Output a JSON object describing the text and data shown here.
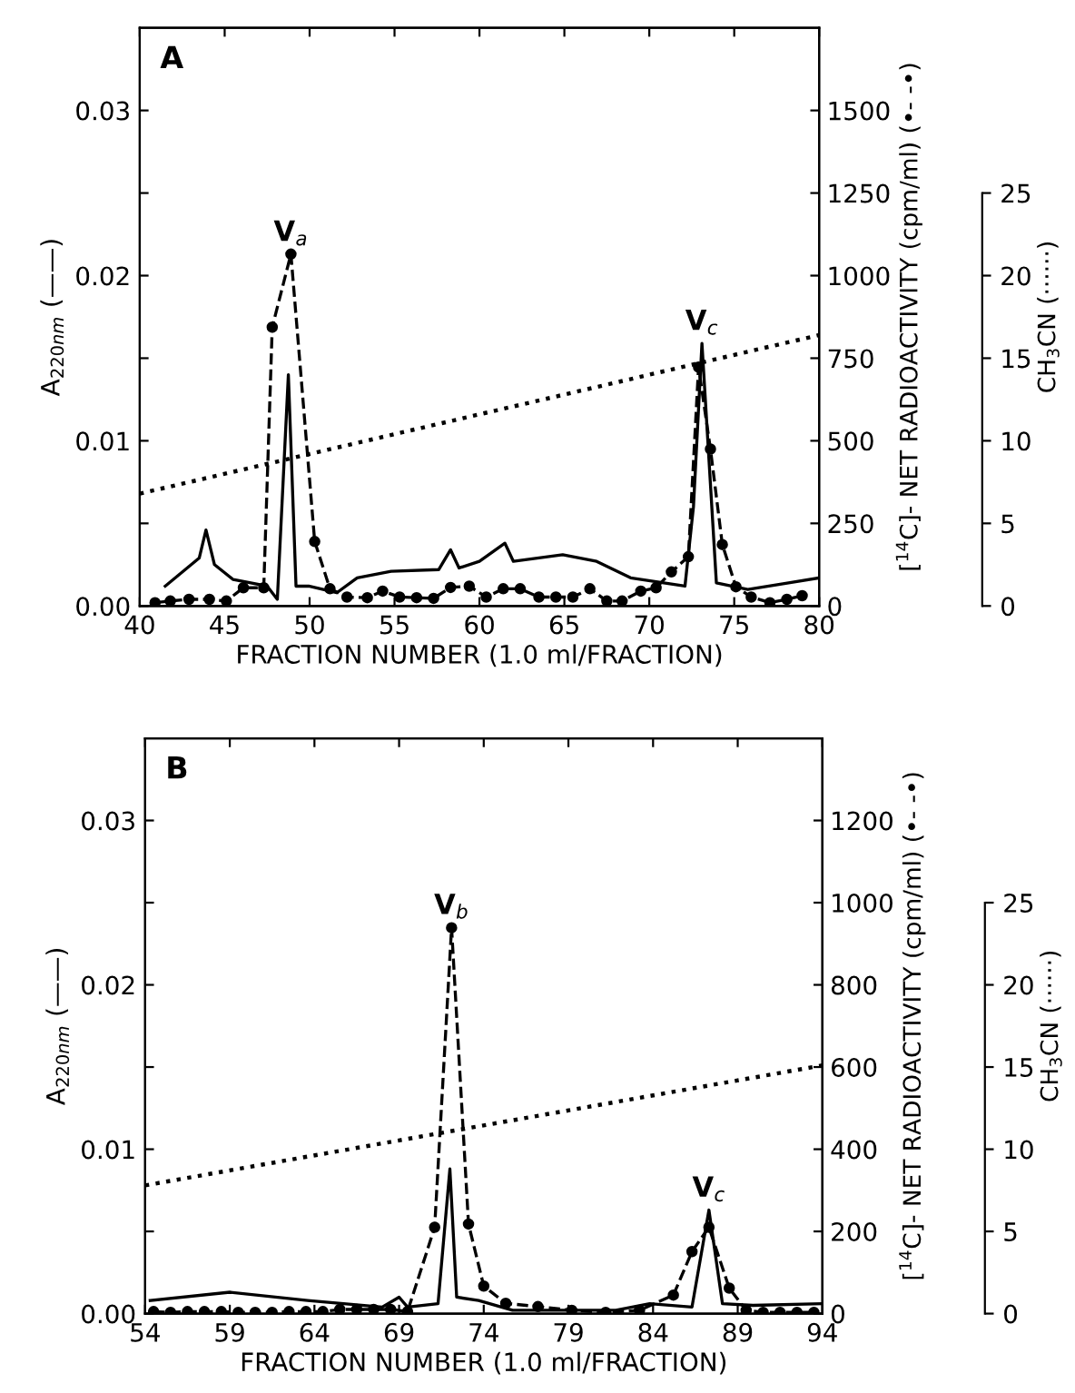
{
  "chart_data": [
    {
      "type": "line",
      "xlabel": "FRACTION NUMBER (1.0 ml/FRACTION)",
      "ylabel": "A$_{220nm}$ (——)",
      "y2label": "[$^{14}$C]- NET RADIOACTIVITY (cpm/ml) (•- -•)",
      "y3label": "CH$_{3}$CN (······)",
      "xlim": [
        40,
        80
      ],
      "xticks": [
        40,
        45,
        50,
        55,
        60,
        65,
        70,
        75,
        80
      ],
      "ylim": [
        0,
        0.035
      ],
      "yticks": [
        {
          "value": 0,
          "label": "0.00"
        },
        {
          "value": 0.005,
          "label": null
        },
        {
          "value": 0.01,
          "label": "0.01"
        },
        {
          "value": 0.015,
          "label": null
        },
        {
          "value": 0.02,
          "label": "0.02"
        },
        {
          "value": 0.025,
          "label": null
        },
        {
          "value": 0.03,
          "label": "0.03"
        }
      ],
      "y2lim": [
        0,
        1750
      ],
      "y2ticks": [
        0,
        250,
        500,
        750,
        1000,
        1250,
        1500
      ],
      "y3lim": [
        0,
        35
      ],
      "y3ticks": [
        0,
        5,
        10,
        15,
        20,
        25
      ],
      "grid": false,
      "legend": false,
      "annotations": [
        "A",
        {
          "text": "V$_{a}$",
          "x": 48.9,
          "y": 0.0213
        },
        {
          "text": "V$_{c}$",
          "x": 73.1,
          "y": 0.0159
        }
      ],
      "series": [
        {
          "color": "#000000",
          "axis": "y",
          "line_style": "solid",
          "marker": "none",
          "x": [
            41.5,
            43.5,
            43.9,
            44.4,
            45.5,
            47.5,
            48.1,
            48.75,
            49.2,
            49.95,
            51.6,
            52.8,
            54.8,
            57.6,
            58.3,
            58.8,
            60,
            61.5,
            62,
            64.9,
            66.9,
            68.9,
            72.1,
            72.6,
            73.1,
            73.95,
            75.8,
            78.2,
            80
          ],
          "values": [
            0.0012,
            0.0029,
            0.0046,
            0.0025,
            0.0016,
            0.0012,
            0.0004,
            0.014,
            0.0012,
            0.0012,
            0.0008,
            0.0017,
            0.0021,
            0.0022,
            0.0034,
            0.0023,
            0.0027,
            0.0038,
            0.0027,
            0.0031,
            0.0027,
            0.0017,
            0.0012,
            0.006,
            0.0159,
            0.0014,
            0.001,
            0.0014,
            0.0017
          ]
        },
        {
          "color": "#000000",
          "axis": "y2",
          "line_style": "dashed",
          "marker": "circle",
          "x": [
            40.9,
            41.8,
            42.9,
            44.1,
            45.1,
            46.1,
            47.3,
            47.8,
            48.9,
            50.3,
            51.2,
            52.2,
            53.4,
            54.3,
            55.3,
            56.3,
            57.3,
            58.3,
            59.4,
            60.4,
            61.4,
            62.4,
            63.5,
            64.5,
            65.5,
            66.5,
            67.5,
            68.4,
            69.5,
            70.4,
            71.3,
            72.3,
            72.9,
            73.6,
            74.3,
            75.1,
            76.0,
            77.1,
            78.1,
            79.0
          ],
          "values": [
            10,
            15,
            20,
            20,
            15,
            55,
            55,
            844,
            1065,
            195,
            52,
            27,
            25,
            45,
            27,
            25,
            23,
            56,
            60,
            27,
            52,
            52,
            27,
            27,
            27,
            52,
            15,
            15,
            45,
            55,
            103,
            149,
            723,
            475,
            186,
            58,
            27,
            10,
            20,
            31
          ]
        },
        {
          "color": "#000000",
          "axis": "y3",
          "line_style": "dotted",
          "marker": "none",
          "x": [
            40,
            80
          ],
          "values": [
            6.8,
            16.4
          ]
        }
      ]
    },
    {
      "type": "line",
      "xlabel": "FRACTION NUMBER (1.0 ml/FRACTION)",
      "ylabel": "A$_{220nm}$ (——)",
      "y2label": "[$^{14}$C]- NET RADIOACTIVITY (cpm/ml) (•- -•)",
      "y3label": "CH$_{3}$CN (······)",
      "xlim": [
        54,
        94
      ],
      "xticks": [
        54,
        59,
        64,
        69,
        74,
        79,
        84,
        89,
        94
      ],
      "ylim": [
        0,
        0.035
      ],
      "yticks": [
        {
          "value": 0,
          "label": "0.00"
        },
        {
          "value": 0.005,
          "label": null
        },
        {
          "value": 0.01,
          "label": "0.01"
        },
        {
          "value": 0.015,
          "label": null
        },
        {
          "value": 0.02,
          "label": "0.02"
        },
        {
          "value": 0.025,
          "label": null
        },
        {
          "value": 0.03,
          "label": "0.03"
        }
      ],
      "y2lim": [
        0,
        1400
      ],
      "y2ticks": [
        0,
        200,
        400,
        600,
        800,
        1000,
        1200
      ],
      "y3lim": [
        0,
        35
      ],
      "y3ticks": [
        0,
        5,
        10,
        15,
        20,
        25
      ],
      "grid": false,
      "legend": false,
      "annotations": [
        "B",
        {
          "text": "V$_{b}$",
          "x": 72.1,
          "y": 0.0235
        },
        {
          "text": "V$_{c}$",
          "x": 87.3,
          "y": 0.0063
        }
      ],
      "series": [
        {
          "color": "#000000",
          "axis": "y",
          "line_style": "solid",
          "marker": "none",
          "x": [
            54.3,
            59,
            63.6,
            68,
            69,
            69.5,
            71.3,
            72,
            72.4,
            73.7,
            75.7,
            81.8,
            83.8,
            86.3,
            87.3,
            88.1,
            89.9,
            94
          ],
          "values": [
            0.0008,
            0.0013,
            0.0008,
            0.0004,
            0.001,
            0.0004,
            0.0006,
            0.0088,
            0.001,
            0.0008,
            0.0002,
            0.0002,
            0.0006,
            0.0004,
            0.0063,
            0.0006,
            0.0005,
            0.0006
          ]
        },
        {
          "color": "#000000",
          "axis": "y2",
          "line_style": "dashed",
          "marker": "circle",
          "x": [
            54.5,
            55.5,
            56.5,
            57.5,
            58.5,
            59.5,
            60.5,
            61.5,
            62.5,
            63.5,
            64.5,
            65.5,
            66.5,
            67.5,
            68.5,
            69.5,
            71.1,
            72.1,
            73.1,
            74.0,
            75.3,
            77.2,
            79.2,
            81.2,
            83.2,
            85.2,
            86.3,
            87.3,
            88.5,
            89.5,
            90.5,
            91.5,
            92.5,
            93.5
          ],
          "values": [
            5,
            3,
            5,
            5,
            5,
            3,
            3,
            3,
            5,
            5,
            5,
            10,
            10,
            10,
            10,
            5,
            210,
            939,
            218,
            67,
            25,
            17,
            8,
            3,
            8,
            45,
            151,
            210,
            62,
            8,
            3,
            3,
            3,
            3
          ]
        },
        {
          "color": "#000000",
          "axis": "y3",
          "line_style": "dotted",
          "marker": "none",
          "x": [
            54,
            94
          ],
          "values": [
            7.8,
            15.1
          ]
        }
      ]
    }
  ]
}
